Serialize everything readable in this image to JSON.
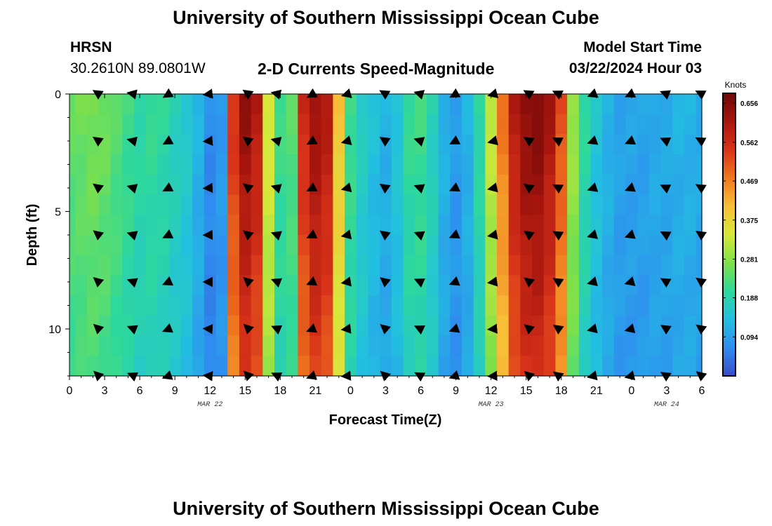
{
  "header": {
    "title_top": "University of Southern Mississippi Ocean Cube",
    "station": "HRSN",
    "coords": "30.2610N  89.0801W",
    "product": "2-D Currents Speed-Magnitude",
    "model_label": "Model Start Time",
    "model_time": "03/22/2024 Hour 03",
    "title_bottom": "University of Southern Mississippi Ocean Cube"
  },
  "colors": {
    "scale": [
      "#3a4cc8",
      "#2f8cf0",
      "#22c0e0",
      "#2fd89a",
      "#7ee04a",
      "#d6e83a",
      "#f7bf38",
      "#f0781e",
      "#d8321a",
      "#a8160e",
      "#6e0808"
    ]
  },
  "chart_data": {
    "type": "heatmap",
    "xlabel": "Forecast Time(Z)",
    "ylabel": "Depth (ft)",
    "xlim": [
      0,
      54
    ],
    "ylim": [
      0,
      12
    ],
    "x_ticks": [
      0,
      3,
      6,
      9,
      12,
      15,
      18,
      21,
      24,
      27,
      30,
      33,
      36,
      39,
      42,
      45,
      48,
      51,
      54
    ],
    "x_tick_labels": [
      "0",
      "3",
      "6",
      "9",
      "12",
      "15",
      "18",
      "21",
      "0",
      "3",
      "6",
      "9",
      "12",
      "15",
      "18",
      "21",
      "0",
      "3",
      "6"
    ],
    "y_ticks": [
      0,
      5,
      10
    ],
    "y_tick_labels": [
      "0",
      "5",
      "10"
    ],
    "date_labels": [
      {
        "x": 12,
        "text": "MAR 22"
      },
      {
        "x": 36,
        "text": "MAR 23"
      },
      {
        "x": 51,
        "text": "MAR 24"
      }
    ],
    "colorbar": {
      "label": "Knots",
      "min": 0.0,
      "max": 0.68,
      "ticks": [
        0.094,
        0.188,
        0.281,
        0.375,
        0.469,
        0.562,
        0.656
      ],
      "tick_labels": [
        "0.094",
        "0.188",
        "0.281",
        "0.375",
        "0.469",
        "0.562",
        "0.656"
      ]
    },
    "time_hours": [
      0,
      1,
      2,
      3,
      4,
      5,
      6,
      7,
      8,
      9,
      10,
      11,
      12,
      13,
      14,
      15,
      16,
      17,
      18,
      19,
      20,
      21,
      22,
      23,
      24,
      25,
      26,
      27,
      28,
      29,
      30,
      31,
      32,
      33,
      34,
      35,
      36,
      37,
      38,
      39,
      40,
      41,
      42,
      43,
      44,
      45,
      46,
      47,
      48,
      49,
      50,
      51,
      52,
      53,
      54
    ],
    "speed_knots": [
      0.25,
      0.26,
      0.27,
      0.26,
      0.24,
      0.22,
      0.2,
      0.21,
      0.2,
      0.18,
      0.16,
      0.12,
      0.07,
      0.09,
      0.55,
      0.64,
      0.6,
      0.35,
      0.22,
      0.24,
      0.57,
      0.63,
      0.6,
      0.4,
      0.22,
      0.17,
      0.14,
      0.12,
      0.15,
      0.21,
      0.22,
      0.18,
      0.12,
      0.09,
      0.12,
      0.2,
      0.33,
      0.48,
      0.6,
      0.65,
      0.66,
      0.62,
      0.52,
      0.3,
      0.2,
      0.15,
      0.12,
      0.1,
      0.1,
      0.1,
      0.11,
      0.11,
      0.12,
      0.12,
      0.11
    ],
    "vector_depths_ft": [
      0,
      2,
      4,
      6,
      8,
      10,
      12
    ],
    "vector_times_hours": [
      2.5,
      5.5,
      8.5,
      12,
      15.3,
      17.8,
      20.8,
      23.8,
      27,
      30,
      33,
      36.3,
      39.3,
      41.8,
      44.8,
      48,
      51,
      54
    ]
  }
}
